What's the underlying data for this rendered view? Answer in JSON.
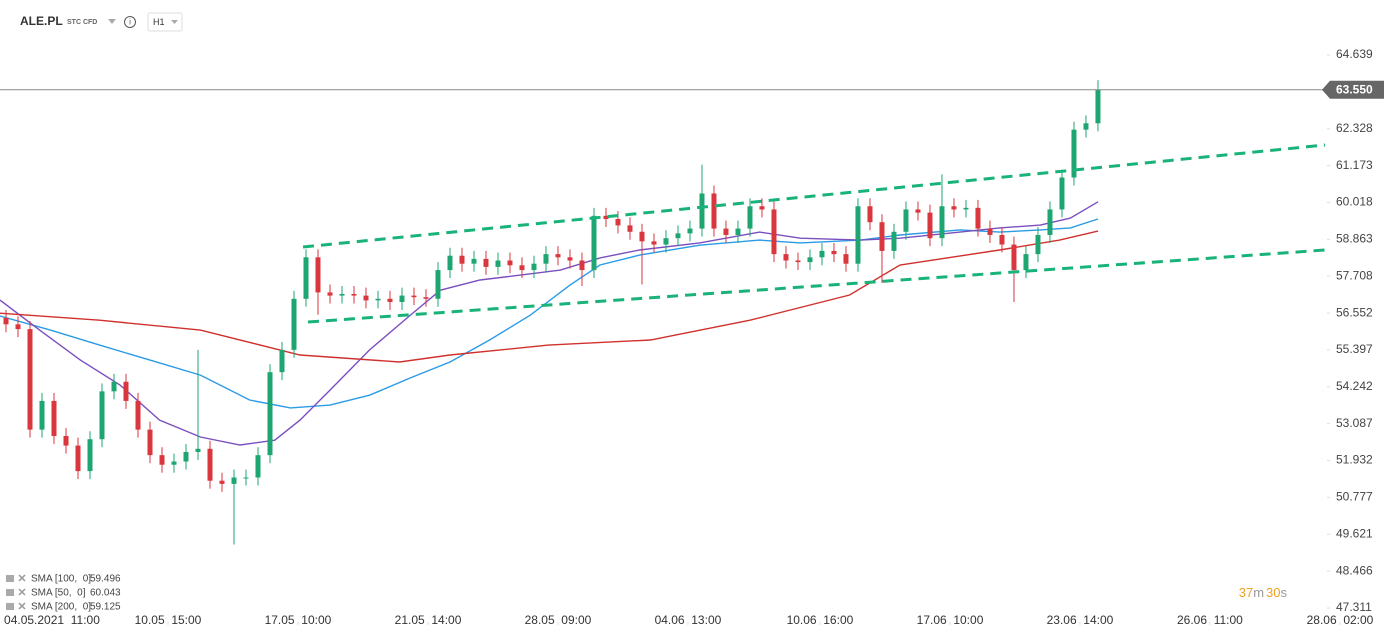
{
  "chart_data": {
    "type": "candlestick",
    "symbol": "ALE.PL",
    "instrument": "STC CFD",
    "interval": "H1",
    "info_icon": "i",
    "countdown": [
      "37",
      "m",
      "30",
      "s"
    ],
    "up_color": "#1ea672",
    "down_color": "#d9363e",
    "open": [
      56.4,
      56.2,
      56.05,
      52.9,
      53.8,
      52.7,
      52.4,
      51.6,
      52.6,
      54.1,
      54.4,
      53.8,
      52.9,
      52.1,
      51.8,
      51.9,
      52.2,
      52.3,
      51.3,
      51.2,
      51.4,
      51.4,
      52.1,
      54.7,
      55.4,
      57.0,
      58.3,
      57.2,
      57.1,
      57.15,
      57.1,
      56.95,
      57.0,
      56.9,
      57.1,
      57.05,
      57.0,
      57.9,
      58.35,
      58.1,
      58.25,
      58.0,
      58.2,
      58.05,
      57.9,
      58.1,
      58.4,
      58.3,
      58.2,
      57.9,
      59.6,
      59.5,
      59.3,
      59.1,
      58.8,
      58.7,
      58.9,
      59.05,
      59.2,
      60.3,
      59.2,
      59.0,
      59.2,
      59.9,
      59.8,
      58.4,
      58.2,
      58.15,
      58.3,
      58.5,
      58.4,
      58.1,
      59.9,
      59.4,
      58.5,
      59.1,
      59.8,
      59.7,
      58.9,
      59.9,
      59.8,
      59.85,
      59.2,
      59.0,
      58.7,
      57.9,
      58.4,
      59.0,
      59.8,
      60.8,
      62.3,
      62.5
    ],
    "high": [
      56.65,
      56.45,
      56.3,
      54.05,
      54.05,
      52.95,
      52.65,
      52.85,
      54.35,
      54.65,
      54.65,
      54.05,
      53.15,
      52.35,
      52.15,
      52.45,
      55.4,
      52.55,
      51.55,
      51.65,
      51.65,
      52.35,
      54.95,
      55.65,
      57.25,
      58.55,
      58.55,
      57.45,
      57.4,
      57.4,
      57.35,
      57.25,
      57.25,
      57.35,
      57.35,
      57.3,
      58.15,
      58.6,
      58.6,
      58.5,
      58.5,
      58.45,
      58.45,
      58.3,
      58.35,
      58.65,
      58.65,
      58.55,
      58.45,
      59.85,
      59.85,
      59.75,
      59.55,
      59.35,
      59.05,
      59.15,
      59.3,
      59.45,
      61.2,
      60.55,
      59.45,
      59.45,
      60.15,
      60.15,
      60.05,
      58.65,
      58.45,
      58.55,
      58.75,
      58.75,
      58.65,
      60.15,
      60.15,
      59.65,
      59.35,
      60.05,
      60.05,
      59.95,
      60.9,
      60.15,
      60.1,
      60.1,
      59.45,
      59.25,
      58.95,
      58.65,
      59.25,
      60.05,
      61.05,
      62.55,
      62.75,
      63.85
    ],
    "low": [
      55.95,
      55.8,
      52.65,
      52.65,
      52.45,
      52.15,
      51.35,
      51.35,
      52.35,
      53.85,
      53.55,
      52.65,
      51.85,
      51.55,
      51.55,
      51.65,
      51.95,
      51.05,
      50.95,
      49.3,
      51.15,
      51.15,
      51.85,
      54.45,
      55.15,
      56.75,
      56.5,
      56.85,
      56.85,
      56.85,
      56.7,
      56.7,
      56.65,
      56.65,
      56.8,
      56.75,
      56.75,
      57.65,
      57.85,
      57.85,
      57.75,
      57.75,
      57.8,
      57.65,
      57.65,
      57.85,
      58.05,
      57.95,
      57.4,
      57.65,
      59.25,
      59.05,
      58.85,
      57.45,
      58.45,
      58.45,
      58.65,
      58.8,
      58.95,
      58.95,
      58.75,
      58.75,
      58.95,
      59.55,
      58.15,
      57.95,
      57.9,
      57.9,
      58.05,
      58.15,
      57.85,
      57.85,
      59.15,
      57.5,
      58.25,
      58.85,
      59.45,
      58.65,
      58.65,
      59.55,
      59.55,
      58.95,
      58.75,
      58.45,
      56.9,
      57.65,
      58.15,
      58.75,
      59.55,
      60.55,
      62.05,
      62.25
    ],
    "close": [
      56.2,
      56.05,
      52.9,
      53.8,
      52.7,
      52.4,
      51.6,
      52.6,
      54.1,
      54.4,
      53.8,
      52.9,
      52.1,
      51.8,
      51.9,
      52.2,
      52.3,
      51.3,
      51.2,
      51.4,
      51.4,
      52.1,
      54.7,
      55.4,
      57.0,
      58.3,
      57.2,
      57.1,
      57.15,
      57.1,
      56.95,
      57.0,
      56.9,
      57.1,
      57.05,
      57.0,
      57.9,
      58.35,
      58.1,
      58.25,
      58.0,
      58.2,
      58.05,
      57.9,
      58.1,
      58.4,
      58.3,
      58.2,
      57.9,
      59.6,
      59.5,
      59.3,
      59.1,
      58.8,
      58.7,
      58.9,
      59.05,
      59.2,
      60.3,
      59.2,
      59.0,
      59.2,
      59.9,
      59.8,
      58.4,
      58.2,
      58.15,
      58.3,
      58.5,
      58.4,
      58.1,
      59.9,
      59.4,
      58.5,
      59.1,
      59.8,
      59.7,
      58.9,
      59.9,
      59.8,
      59.85,
      59.2,
      59.0,
      58.7,
      57.9,
      58.4,
      59.0,
      59.8,
      60.8,
      62.3,
      62.5,
      63.55
    ],
    "series": [
      {
        "name": "SMA [100,  0]",
        "last": 59.496,
        "color": "#2b9be6",
        "x": [
          -0.5,
          3.7,
          7.8,
          12,
          16.2,
          20.3,
          23.7,
          27,
          30.3,
          33.7,
          37,
          40.3,
          43.7,
          47,
          49.5,
          52.8,
          57.8,
          62.8,
          66.2,
          71.2,
          74.5,
          79.5,
          82.8,
          86.2,
          88.7,
          91
        ],
        "values": [
          56.46,
          56.02,
          55.55,
          55.08,
          54.61,
          53.83,
          53.58,
          53.67,
          53.98,
          54.52,
          55.02,
          55.71,
          56.49,
          57.43,
          58.06,
          58.37,
          58.68,
          58.84,
          58.75,
          58.84,
          59.0,
          59.16,
          59.09,
          59.16,
          59.22,
          59.5
        ]
      },
      {
        "name": "SMA [50,  0]",
        "last": 60.043,
        "color": "#7b4fbf",
        "x": [
          -0.5,
          2.8,
          6.2,
          9.5,
          12.8,
          16.2,
          19.5,
          22.4,
          24.5,
          27,
          30.3,
          33.7,
          36.2,
          39.5,
          42.8,
          46.2,
          49.5,
          52.8,
          57.8,
          62.8,
          66.2,
          71.2,
          74.5,
          79.5,
          82.8,
          86.2,
          88.7,
          91
        ],
        "values": [
          56.96,
          56.02,
          55.08,
          54.3,
          53.2,
          52.67,
          52.42,
          52.57,
          53.2,
          54.14,
          55.4,
          56.49,
          57.27,
          57.59,
          57.74,
          57.9,
          58.28,
          58.53,
          58.75,
          59.09,
          58.9,
          58.84,
          58.9,
          59.09,
          59.22,
          59.31,
          59.53,
          60.04
        ]
      },
      {
        "name": "SMA [200,  0]",
        "last": 59.125,
        "color": "#d0312d",
        "x": [
          -0.5,
          7.8,
          16.2,
          24.5,
          32.8,
          37,
          45.2,
          53.7,
          62,
          70.3,
          74.5,
          82.8,
          87.8,
          91
        ],
        "values": [
          56.55,
          56.33,
          56.02,
          55.24,
          55.02,
          55.24,
          55.55,
          55.71,
          56.33,
          57.12,
          58.06,
          58.53,
          58.84,
          59.12
        ]
      }
    ],
    "last_price": {
      "value": 63.55,
      "label": "63.550"
    },
    "xlim": [
      -0.5,
      109.92
    ],
    "xticks": [
      {
        "value": 3.83,
        "label": "04.05.2021  11:00"
      },
      {
        "value": 13.5,
        "label": "10.05  15:00"
      },
      {
        "value": 24.33,
        "label": "17.05  10:00"
      },
      {
        "value": 35.17,
        "label": "21.05  14:00"
      },
      {
        "value": 46,
        "label": "28.05  09:00"
      },
      {
        "value": 56.83,
        "label": "04.06  13:00"
      },
      {
        "value": 67.83,
        "label": "10.06  16:00"
      },
      {
        "value": 78.67,
        "label": "17.06  10:00"
      },
      {
        "value": 89.5,
        "label": "23.06  14:00"
      },
      {
        "value": 100.33,
        "label": "26.06  11:00"
      },
      {
        "value": 111.17,
        "label": "28.06  02:00"
      }
    ],
    "ylim": [
      46.778,
      66.363
    ],
    "yticks": [
      64.639,
      62.328,
      61.173,
      60.018,
      58.863,
      57.708,
      56.552,
      55.397,
      54.242,
      53.087,
      51.932,
      50.777,
      49.621,
      48.466,
      47.311
    ]
  }
}
